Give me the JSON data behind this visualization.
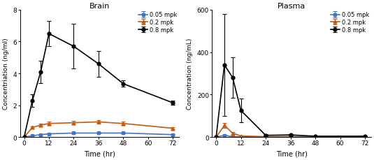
{
  "time_points": [
    0,
    4,
    8,
    12,
    24,
    36,
    48,
    72
  ],
  "brain_005": [
    0.0,
    0.08,
    0.15,
    0.2,
    0.25,
    0.25,
    0.25,
    0.15
  ],
  "brain_005_err": [
    0.0,
    0.02,
    0.04,
    0.04,
    0.04,
    0.04,
    0.04,
    0.03
  ],
  "brain_02": [
    0.0,
    0.6,
    0.75,
    0.85,
    0.9,
    0.95,
    0.85,
    0.55
  ],
  "brain_02_err": [
    0.0,
    0.08,
    0.1,
    0.1,
    0.12,
    0.1,
    0.1,
    0.08
  ],
  "brain_08": [
    0.0,
    2.3,
    4.1,
    6.5,
    5.7,
    4.6,
    3.35,
    2.15
  ],
  "brain_08_err": [
    0.0,
    0.4,
    0.7,
    0.8,
    1.4,
    0.8,
    0.2,
    0.12
  ],
  "plasma_time_points": [
    0,
    4,
    8,
    12,
    24,
    36,
    48,
    72
  ],
  "plasma_005": [
    0.0,
    8.0,
    2.0,
    1.0,
    0.5,
    0.5,
    0.5,
    0.5
  ],
  "plasma_005_err": [
    0.0,
    2.0,
    1.0,
    0.5,
    0.2,
    0.2,
    0.2,
    0.2
  ],
  "plasma_02": [
    0.0,
    55.0,
    18.0,
    5.0,
    2.0,
    2.0,
    2.0,
    2.0
  ],
  "plasma_02_err": [
    0.0,
    12.0,
    5.0,
    2.0,
    1.0,
    1.0,
    1.0,
    1.0
  ],
  "plasma_08": [
    0.0,
    340.0,
    280.0,
    125.0,
    8.0,
    10.0,
    4.0,
    4.0
  ],
  "plasma_08_err": [
    0.0,
    240.0,
    95.0,
    55.0,
    4.0,
    4.0,
    2.0,
    2.0
  ],
  "color_005": "#4472C4",
  "color_02": "#C55A11",
  "color_08": "#000000",
  "brain_title": "Brain",
  "plasma_title": "Plasma",
  "brain_ylabel": "Concentriation (ng/ml)",
  "plasma_ylabel": "Concentration (ng/mL)",
  "xlabel": "Time (hr)",
  "brain_ylim": [
    0,
    8
  ],
  "plasma_ylim": [
    0,
    600
  ],
  "brain_yticks": [
    0,
    2,
    4,
    6,
    8
  ],
  "plasma_yticks": [
    0,
    200,
    400,
    600
  ],
  "xticks": [
    0,
    12,
    24,
    36,
    48,
    60,
    72
  ],
  "label_005": "0.05 mpk",
  "label_02": "0.2 mpk",
  "label_08": "0.8 mpk"
}
